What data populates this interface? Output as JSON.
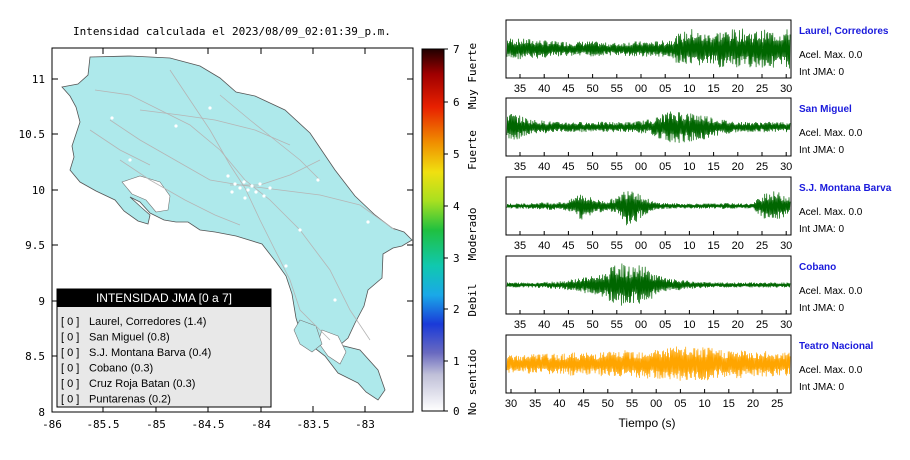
{
  "map": {
    "title": "Intensidad calculada el 2023/08/09_02:01:39_p.m.",
    "x_ticks": [
      "-86",
      "-85.5",
      "-85",
      "-84.5",
      "-84",
      "-83.5",
      "-83"
    ],
    "y_ticks": [
      "11",
      "10.5",
      "10",
      "9.5",
      "9",
      "8.5",
      "8"
    ],
    "land_color": "#aee9eb",
    "legend": {
      "title": "INTENSIDAD JMA [0 a 7]",
      "items": [
        {
          "code": "[ 0 ]",
          "label": "Laurel, Corredores (1.4)"
        },
        {
          "code": "[ 0 ]",
          "label": "San Miguel (0.8)"
        },
        {
          "code": "[ 0 ]",
          "label": "S.J. Montana Barva (0.4)"
        },
        {
          "code": "[ 0 ]",
          "label": "Cobano (0.3)"
        },
        {
          "code": "[ 0 ]",
          "label": "Cruz Roja Batan (0.3)"
        },
        {
          "code": "[ 0 ]",
          "label": "Puntarenas (0.2)"
        }
      ]
    }
  },
  "colorbar": {
    "ticks": [
      "7",
      "6",
      "5",
      "4",
      "3",
      "2",
      "1",
      "0"
    ],
    "categories": [
      "Muy Fuerte",
      "Fuerte",
      "Moderado",
      "Debil",
      "No sentido"
    ]
  },
  "chart_data": {
    "type": "line",
    "xlabel": "Tiempo (s)",
    "x_tick_labels": [
      "35",
      "40",
      "45",
      "50",
      "55",
      "00",
      "05",
      "10",
      "15",
      "20",
      "25",
      "30"
    ],
    "x_tick_labels_last": [
      "30",
      "35",
      "40",
      "45",
      "50",
      "55",
      "00",
      "05",
      "10",
      "15",
      "20",
      "25"
    ],
    "series": [
      {
        "name": "Laurel, Corredores",
        "acel": "Acel. Max. 0.0",
        "int": "Int JMA: 0",
        "color": "#006600",
        "envelope": [
          0.45,
          0.4,
          0.4,
          0.35,
          0.3,
          0.3,
          0.3,
          0.3,
          0.25,
          0.25,
          0.3,
          0.3,
          0.3,
          0.35,
          0.6,
          0.8,
          0.6,
          0.7,
          0.75,
          0.8,
          0.7,
          0.75,
          0.7,
          0.8
        ]
      },
      {
        "name": "San Miguel",
        "acel": "Acel. Max. 0.0",
        "int": "Int JMA: 0",
        "color": "#006600",
        "envelope": [
          0.6,
          0.45,
          0.3,
          0.25,
          0.2,
          0.2,
          0.2,
          0.2,
          0.2,
          0.2,
          0.2,
          0.25,
          0.35,
          0.6,
          0.65,
          0.55,
          0.5,
          0.35,
          0.25,
          0.2,
          0.2,
          0.2,
          0.2,
          0.2
        ]
      },
      {
        "name": "S.J. Montana Barva",
        "acel": "Acel. Max. 0.0",
        "int": "Int JMA: 0",
        "color": "#006600",
        "envelope": [
          0.1,
          0.1,
          0.12,
          0.15,
          0.15,
          0.2,
          0.55,
          0.3,
          0.2,
          0.35,
          0.9,
          0.4,
          0.15,
          0.12,
          0.1,
          0.1,
          0.1,
          0.1,
          0.12,
          0.1,
          0.1,
          0.6,
          0.55,
          0.4
        ]
      },
      {
        "name": "Cobano",
        "acel": "Acel. Max. 0.0",
        "int": "Int JMA: 0",
        "color": "#006600",
        "envelope": [
          0.1,
          0.1,
          0.1,
          0.12,
          0.15,
          0.2,
          0.3,
          0.35,
          0.5,
          0.9,
          0.7,
          0.8,
          0.45,
          0.25,
          0.2,
          0.15,
          0.12,
          0.1,
          0.1,
          0.1,
          0.1,
          0.1,
          0.1,
          0.1
        ]
      },
      {
        "name": "Teatro Nacional",
        "acel": "Acel. Max. 0.0",
        "int": "Int JMA: 0",
        "color": "#ffa500",
        "envelope": [
          0.35,
          0.35,
          0.4,
          0.4,
          0.4,
          0.45,
          0.45,
          0.45,
          0.5,
          0.5,
          0.55,
          0.55,
          0.6,
          0.65,
          0.7,
          0.65,
          0.65,
          0.6,
          0.55,
          0.55,
          0.5,
          0.5,
          0.5,
          0.45
        ]
      }
    ]
  }
}
